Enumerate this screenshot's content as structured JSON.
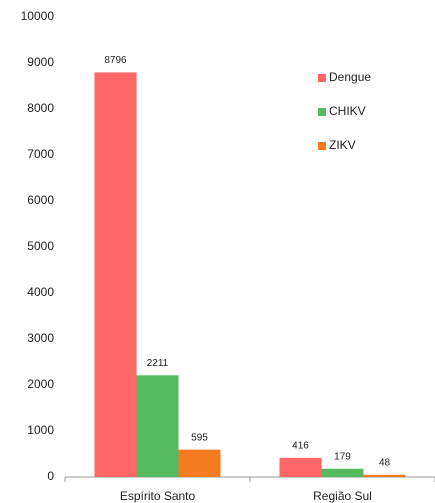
{
  "chart_data": {
    "type": "bar",
    "categories": [
      "Espírito Santo",
      "Região Sul"
    ],
    "series": [
      {
        "name": "Dengue",
        "color": "#ff6666",
        "values": [
          8796,
          416
        ]
      },
      {
        "name": "CHIKV",
        "color": "#55bb5e",
        "values": [
          2211,
          179
        ]
      },
      {
        "name": "ZIKV",
        "color": "#f47c20",
        "values": [
          595,
          48
        ]
      }
    ],
    "ylim": [
      0,
      10000
    ],
    "yticks": [
      0,
      1000,
      2000,
      3000,
      4000,
      5000,
      6000,
      7000,
      8000,
      9000,
      10000
    ],
    "legend": "upper right",
    "grid": false
  }
}
